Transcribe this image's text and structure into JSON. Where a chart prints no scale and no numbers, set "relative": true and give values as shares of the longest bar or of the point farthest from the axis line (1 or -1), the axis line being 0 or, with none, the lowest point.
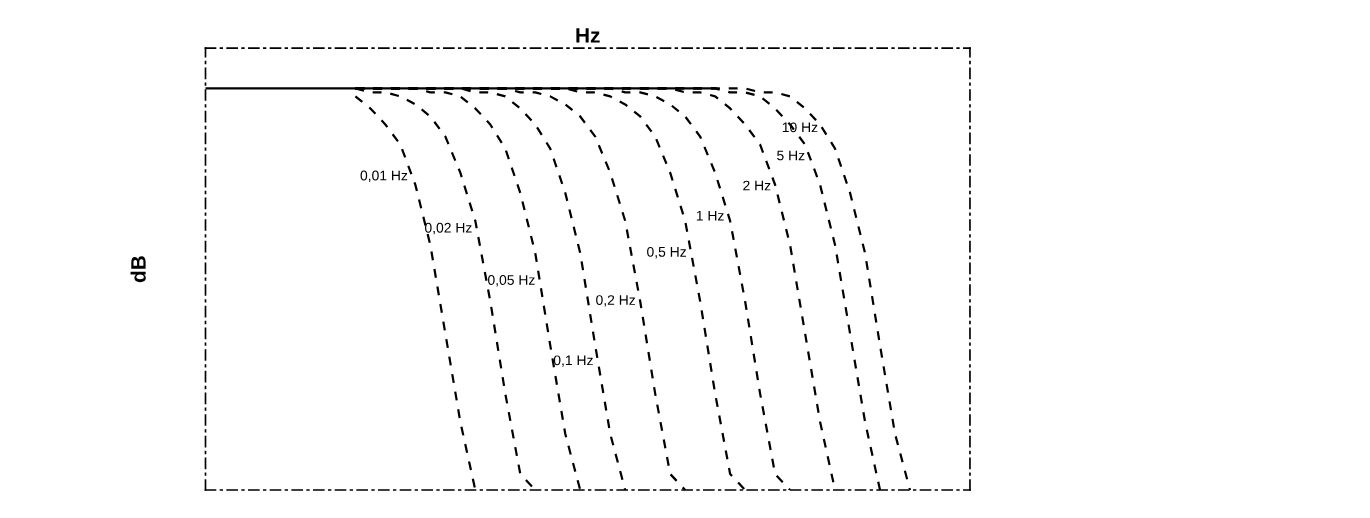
{
  "chart_data": {
    "type": "line",
    "relative": true,
    "xlabel": "Hz",
    "ylabel": "dB",
    "marker": "none",
    "legend": false,
    "categories": [
      null,
      null,
      null,
      null,
      null,
      null,
      null,
      null,
      null,
      null,
      null,
      null,
      null,
      null,
      null,
      null,
      null,
      null,
      null,
      null,
      null,
      null,
      null,
      null,
      null,
      null,
      null,
      null,
      null,
      null,
      null,
      null,
      null,
      null,
      null,
      null,
      null,
      null,
      null,
      null,
      null,
      null,
      null,
      null,
      null,
      null,
      null,
      null,
      null,
      null,
      null,
      null
    ],
    "series": [
      {
        "color": "#000000",
        "line_style": "solid",
        "values": [
          1,
          1,
          1,
          1,
          1,
          1,
          1,
          1,
          1,
          1,
          1,
          1,
          1,
          1,
          1,
          1,
          1,
          1,
          1,
          1,
          1,
          1,
          1,
          1,
          1,
          1,
          1,
          1,
          1,
          1,
          1,
          1,
          1,
          1,
          1,
          null,
          null,
          null,
          null,
          null,
          null,
          null,
          null,
          null,
          null,
          null,
          null,
          null,
          null,
          null,
          null,
          null
        ]
      },
      {
        "name": "0,01 Hz",
        "color": "#000000",
        "line_style": "dashed",
        "values": [
          null,
          null,
          null,
          null,
          null,
          null,
          null,
          null,
          null,
          null,
          0.98,
          0.95,
          0.91,
          0.86,
          0.76,
          0.61,
          0.39,
          0.17,
          0,
          null,
          null,
          null,
          null,
          null,
          null,
          null,
          null,
          null,
          null,
          null,
          null,
          null,
          null,
          null,
          null,
          null,
          null,
          null,
          null,
          null,
          null,
          null,
          null,
          null,
          null,
          null,
          null,
          null,
          null,
          null,
          null,
          null
        ]
      },
      {
        "name": "0,02 Hz",
        "color": "#000000",
        "line_style": "dashed",
        "values": [
          null,
          null,
          null,
          null,
          null,
          null,
          null,
          null,
          null,
          null,
          1,
          0.99,
          0.99,
          0.98,
          0.96,
          0.93,
          0.88,
          0.79,
          0.67,
          0.47,
          0.24,
          0.04,
          0,
          null,
          null,
          null,
          null,
          null,
          null,
          null,
          null,
          null,
          null,
          null,
          null,
          null,
          null,
          null,
          null,
          null,
          null,
          null,
          null,
          null,
          null,
          null,
          null,
          null,
          null,
          null,
          null,
          null
        ]
      },
      {
        "name": "0,05 Hz",
        "color": "#000000",
        "line_style": "dashed",
        "values": [
          null,
          null,
          null,
          null,
          null,
          null,
          null,
          null,
          null,
          null,
          1,
          1,
          1,
          1,
          1,
          0.99,
          0.99,
          0.98,
          0.95,
          0.91,
          0.85,
          0.74,
          0.59,
          0.36,
          0.14,
          0,
          null,
          null,
          null,
          null,
          null,
          null,
          null,
          null,
          null,
          null,
          null,
          null,
          null,
          null,
          null,
          null,
          null,
          null,
          null,
          null,
          null,
          null,
          null,
          null,
          null,
          null
        ]
      },
      {
        "name": "0,1 Hz",
        "color": "#000000",
        "line_style": "dashed",
        "values": [
          null,
          null,
          null,
          null,
          null,
          null,
          null,
          null,
          null,
          null,
          1,
          1,
          1,
          1,
          1,
          1,
          1,
          1,
          0.99,
          0.99,
          0.98,
          0.95,
          0.91,
          0.85,
          0.74,
          0.59,
          0.36,
          0.14,
          0,
          null,
          null,
          null,
          null,
          null,
          null,
          null,
          null,
          null,
          null,
          null,
          null,
          null,
          null,
          null,
          null,
          null,
          null,
          null,
          null,
          null,
          null,
          null
        ]
      },
      {
        "name": "0,2 Hz",
        "color": "#000000",
        "line_style": "dashed",
        "values": [
          null,
          null,
          null,
          null,
          null,
          null,
          null,
          null,
          null,
          null,
          1,
          1,
          1,
          1,
          1,
          1,
          1,
          1,
          1,
          1,
          1,
          0.99,
          0.99,
          0.98,
          0.96,
          0.93,
          0.88,
          0.79,
          0.67,
          0.47,
          0.24,
          0.04,
          0,
          null,
          null,
          null,
          null,
          null,
          null,
          null,
          null,
          null,
          null,
          null,
          null,
          null,
          null,
          null,
          null,
          null,
          null,
          null
        ]
      },
      {
        "name": "0,5 Hz",
        "color": "#000000",
        "line_style": "dashed",
        "values": [
          null,
          null,
          null,
          null,
          null,
          null,
          null,
          null,
          null,
          null,
          1,
          1,
          1,
          1,
          1,
          1,
          1,
          1,
          1,
          1,
          1,
          1,
          1,
          1,
          1,
          0.99,
          0.99,
          0.98,
          0.96,
          0.93,
          0.88,
          0.79,
          0.67,
          0.47,
          0.24,
          0.04,
          0,
          null,
          null,
          null,
          null,
          null,
          null,
          null,
          null,
          null,
          null,
          null,
          null,
          null,
          null,
          null
        ]
      },
      {
        "name": "1 Hz",
        "color": "#000000",
        "line_style": "dashed",
        "values": [
          null,
          null,
          null,
          null,
          null,
          null,
          null,
          null,
          null,
          null,
          1,
          1,
          1,
          1,
          1,
          1,
          1,
          1,
          1,
          1,
          1,
          1,
          1,
          1,
          1,
          1,
          1,
          1,
          0.99,
          0.99,
          0.98,
          0.96,
          0.93,
          0.88,
          0.79,
          0.67,
          0.47,
          0.24,
          0.04,
          0,
          null,
          null,
          null,
          null,
          null,
          null,
          null,
          null,
          null,
          null,
          null,
          null
        ]
      },
      {
        "name": "2 Hz",
        "color": "#000000",
        "line_style": "dashed",
        "values": [
          null,
          null,
          null,
          null,
          null,
          null,
          null,
          null,
          null,
          null,
          1,
          1,
          1,
          1,
          1,
          1,
          1,
          1,
          1,
          1,
          1,
          1,
          1,
          1,
          1,
          1,
          1,
          1,
          1,
          1,
          1,
          1,
          0.99,
          0.99,
          0.98,
          0.95,
          0.91,
          0.86,
          0.76,
          0.61,
          0.39,
          0.17,
          0,
          null,
          null,
          null,
          null,
          null,
          null,
          null,
          null,
          null
        ]
      },
      {
        "name": "5 Hz",
        "color": "#000000",
        "line_style": "dashed",
        "values": [
          null,
          null,
          null,
          null,
          null,
          null,
          null,
          null,
          null,
          null,
          1,
          1,
          1,
          1,
          1,
          1,
          1,
          1,
          1,
          1,
          1,
          1,
          1,
          1,
          1,
          1,
          1,
          1,
          1,
          1,
          1,
          1,
          1,
          1,
          1,
          0.99,
          0.99,
          0.98,
          0.95,
          0.91,
          0.86,
          0.76,
          0.61,
          0.39,
          0.17,
          0,
          null,
          null,
          null,
          null,
          null,
          null
        ]
      },
      {
        "name": "10 Hz",
        "color": "#000000",
        "line_style": "dashed",
        "values": [
          null,
          null,
          null,
          null,
          null,
          null,
          null,
          null,
          null,
          null,
          1,
          1,
          1,
          1,
          1,
          1,
          1,
          1,
          1,
          1,
          1,
          1,
          1,
          1,
          1,
          1,
          1,
          1,
          1,
          1,
          1,
          1,
          1,
          1,
          1,
          1,
          1,
          0.99,
          0.99,
          0.98,
          0.95,
          0.91,
          0.85,
          0.74,
          0.59,
          0.36,
          0.14,
          0,
          null,
          null,
          null,
          null
        ]
      }
    ]
  }
}
